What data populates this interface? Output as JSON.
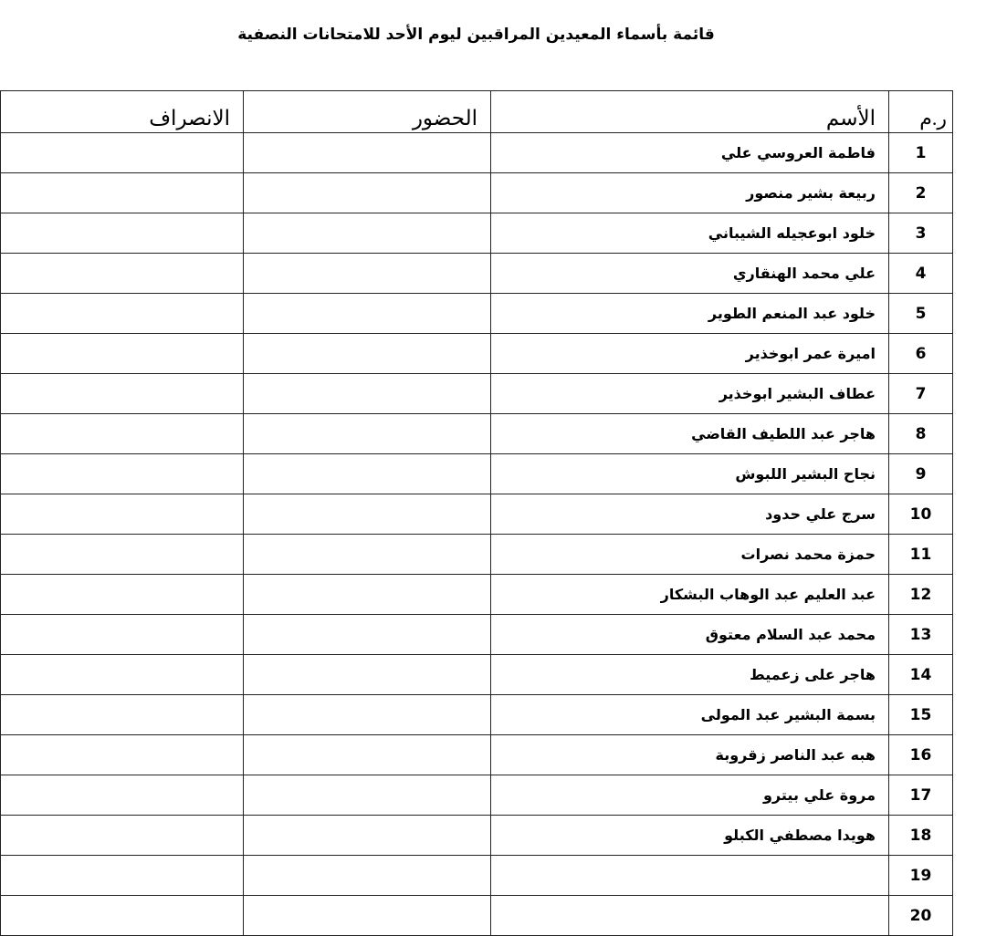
{
  "title": "قائمة بأسماء المعيدين المراقبين ليوم الأحد للامتحانات النصفية",
  "headers": {
    "number": "ر.م",
    "name": "الأسم",
    "attendance": "الحضور",
    "departure": "الانصراف"
  },
  "rows": [
    {
      "number": "1",
      "name": "فاطمة العروسي علي"
    },
    {
      "number": "2",
      "name": "ربيعة بشير منصور"
    },
    {
      "number": "3",
      "name": "خلود ابوعجيله الشيباني"
    },
    {
      "number": "4",
      "name": "علي محمد الهنقاري"
    },
    {
      "number": "5",
      "name": "خلود عبد المنعم الطوير"
    },
    {
      "number": "6",
      "name": "اميرة عمر ابوخذير"
    },
    {
      "number": "7",
      "name": "عطاف البشير ابوخذير"
    },
    {
      "number": "8",
      "name": "هاجر عبد اللطيف القاضي"
    },
    {
      "number": "9",
      "name": "نجاح البشير اللبوش"
    },
    {
      "number": "10",
      "name": "سرج علي حدود"
    },
    {
      "number": "11",
      "name": "حمزة محمد نصرات"
    },
    {
      "number": "12",
      "name": "عبد العليم عبد الوهاب البشكار"
    },
    {
      "number": "13",
      "name": "محمد عبد السلام معتوق"
    },
    {
      "number": "14",
      "name": "هاجر على زعميط"
    },
    {
      "number": "15",
      "name": "بسمة البشير عبد المولى"
    },
    {
      "number": "16",
      "name": "هبه عبد الناصر زقروبة"
    },
    {
      "number": "17",
      "name": "مروة علي بيترو"
    },
    {
      "number": "18",
      "name": "هويدا مصطفي الكبلو"
    },
    {
      "number": "19",
      "name": ""
    },
    {
      "number": "20",
      "name": ""
    }
  ]
}
